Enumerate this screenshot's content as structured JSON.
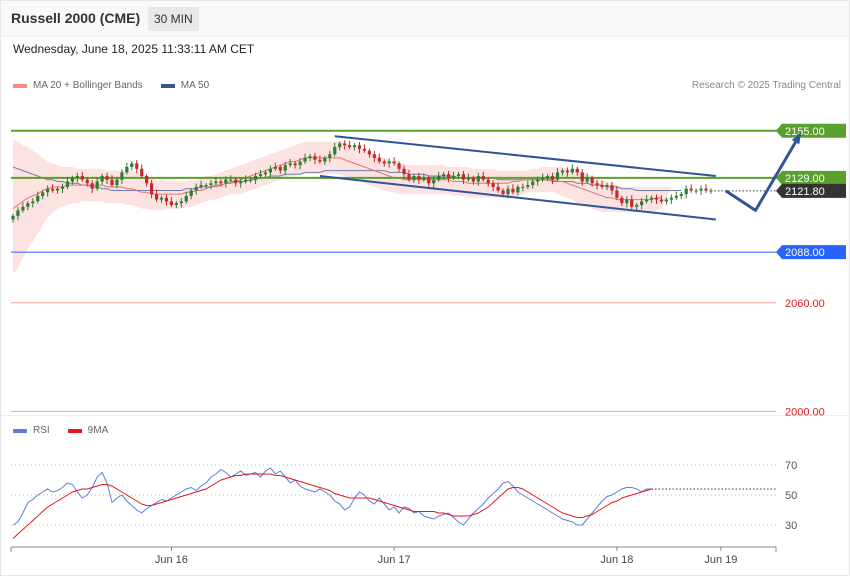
{
  "header": {
    "title": "Russell 2000 (CME)",
    "timeframe": "30 MIN",
    "datetime": "Wednesday, June 18, 2025 11:33:11 AM CET",
    "credit": "Research © 2025 Trading Central"
  },
  "legend": [
    {
      "label": "MA 20 + Bollinger Bands",
      "color": "#f28b82"
    },
    {
      "label": "MA 50",
      "color": "#2f5597"
    }
  ],
  "rsi_legend": [
    {
      "label": "RSI",
      "color": "#5b7fd6"
    },
    {
      "label": "9MA",
      "color": "#e31a1c"
    }
  ],
  "chart_data": [
    {
      "type": "candlestick",
      "ylim": [
        1998,
        2172
      ],
      "x_labels": [
        "Jun 16",
        "Jun 17",
        "Jun 18",
        "Jun 19"
      ],
      "x_label_bar_index": [
        32,
        77,
        122,
        143
      ],
      "last_price": 2121.8,
      "levels": [
        {
          "label": "2155.00",
          "value": 2155.0,
          "kind": "resistance",
          "color": "#5aa02c"
        },
        {
          "label": "2129.00",
          "value": 2129.0,
          "kind": "resistance",
          "color": "#5aa02c"
        },
        {
          "label": "2121.80",
          "value": 2121.8,
          "kind": "last",
          "color": "#333333"
        },
        {
          "label": "2088.00",
          "value": 2088.0,
          "kind": "pivot",
          "color": "#2962ff"
        },
        {
          "label": "2060.00",
          "value": 2060.0,
          "kind": "support",
          "color": "#e31a1c"
        },
        {
          "label": "2000.00",
          "value": 2000.0,
          "kind": "support",
          "color": "#e31a1c"
        }
      ],
      "channel": {
        "upper": [
          [
            65,
            2152
          ],
          [
            142,
            2130
          ]
        ],
        "lower": [
          [
            62,
            2130
          ],
          [
            142,
            2106
          ]
        ],
        "color": "#2f5597"
      },
      "forecast_path": [
        [
          144,
          2121.8
        ],
        [
          150,
          2111
        ],
        [
          159,
          2153
        ]
      ],
      "closes": [
        2108,
        2111,
        2113,
        2115,
        2116,
        2119,
        2121,
        2123,
        2122,
        2123,
        2124,
        2127,
        2129,
        2130,
        2128,
        2126,
        2123,
        2127,
        2130,
        2128,
        2125,
        2128,
        2132,
        2135,
        2137,
        2134,
        2130,
        2126,
        2120,
        2117,
        2118,
        2116,
        2114,
        2115,
        2116,
        2119,
        2122,
        2124,
        2125,
        2125,
        2126,
        2127,
        2126,
        2128,
        2128,
        2126,
        2127,
        2128,
        2128,
        2130,
        2131,
        2132,
        2134,
        2135,
        2133,
        2136,
        2137,
        2136,
        2138,
        2140,
        2141,
        2139,
        2138,
        2140,
        2142,
        2146,
        2148,
        2147,
        2146,
        2147,
        2145,
        2144,
        2142,
        2140,
        2138,
        2137,
        2138,
        2137,
        2134,
        2131,
        2128,
        2130,
        2128,
        2129,
        2126,
        2128,
        2130,
        2131,
        2129,
        2130,
        2131,
        2128,
        2129,
        2127,
        2130,
        2128,
        2126,
        2124,
        2122,
        2120,
        2123,
        2121,
        2124,
        2124,
        2125,
        2127,
        2128,
        2129,
        2130,
        2128,
        2132,
        2133,
        2132,
        2134,
        2132,
        2127,
        2129,
        2126,
        2125,
        2124,
        2125,
        2122,
        2118,
        2115,
        2117,
        2113,
        2114,
        2116,
        2117,
        2118,
        2117,
        2116,
        2117,
        2118,
        2119,
        2120,
        2123,
        2122,
        2122,
        2123,
        2122,
        2122
      ],
      "ma20": [
        2112,
        2114,
        2116,
        2118,
        2119,
        2120,
        2122,
        2123,
        2124,
        2124,
        2124,
        2125,
        2125,
        2125,
        2125,
        2125,
        2125,
        2125,
        2125,
        2124,
        2124,
        2124,
        2124,
        2123,
        2123,
        2122,
        2121,
        2121,
        2120,
        2120,
        2120,
        2120,
        2120,
        2120,
        2120,
        2121,
        2121,
        2122,
        2122,
        2123,
        2124,
        2124,
        2125,
        2126,
        2127,
        2127,
        2128,
        2129,
        2130,
        2131,
        2132,
        2133,
        2134,
        2135,
        2136,
        2137,
        2138,
        2138,
        2139,
        2140,
        2140,
        2140,
        2140,
        2140,
        2140,
        2140,
        2140,
        2139,
        2138,
        2137,
        2136,
        2135,
        2134,
        2133,
        2132,
        2131,
        2130,
        2129,
        2129,
        2128,
        2128,
        2128,
        2128,
        2128,
        2128,
        2128,
        2128,
        2128,
        2128,
        2127,
        2127,
        2127,
        2126,
        2126,
        2126,
        2126,
        2126,
        2126,
        2126,
        2126,
        2126,
        2127,
        2127,
        2128,
        2128,
        2128,
        2128,
        2128,
        2128,
        2128,
        2127,
        2127,
        2126,
        2125,
        2124,
        2123,
        2122,
        2121,
        2120,
        2119,
        2118,
        2118,
        2117,
        2117,
        2117,
        2117,
        2117,
        2117,
        2117,
        2117,
        2118,
        2118
      ],
      "ma50": [
        2135,
        2134,
        2133,
        2132,
        2131,
        2130,
        2129,
        2128,
        2128,
        2127,
        2127,
        2126,
        2126,
        2126,
        2125,
        2125,
        2124,
        2124,
        2123,
        2123,
        2122,
        2122,
        2122,
        2122,
        2122,
        2122,
        2122,
        2122,
        2122,
        2122,
        2122,
        2122,
        2122,
        2122,
        2122,
        2123,
        2123,
        2123,
        2124,
        2124,
        2124,
        2125,
        2125,
        2126,
        2126,
        2127,
        2127,
        2127,
        2128,
        2128,
        2129,
        2129,
        2130,
        2130,
        2130,
        2131,
        2131,
        2131,
        2131,
        2132,
        2132,
        2132,
        2132,
        2133,
        2133,
        2133,
        2133,
        2133,
        2133,
        2133,
        2133,
        2133,
        2133,
        2133,
        2133,
        2133,
        2132,
        2132,
        2132,
        2132,
        2131,
        2131,
        2131,
        2131,
        2130,
        2130,
        2130,
        2130,
        2130,
        2130,
        2129,
        2129,
        2129,
        2129,
        2129,
        2129,
        2129,
        2129,
        2128,
        2128,
        2128,
        2128,
        2128,
        2128,
        2128,
        2128,
        2128,
        2128,
        2128,
        2127,
        2127,
        2127,
        2127,
        2127,
        2126,
        2126,
        2126,
        2125,
        2125,
        2125,
        2124,
        2124,
        2124,
        2123,
        2123,
        2123,
        2122,
        2122,
        2122,
        2122,
        2122,
        2122,
        2122,
        2122,
        2122,
        2122
      ],
      "bb_upper": [
        2150,
        2149,
        2147,
        2146,
        2144,
        2142,
        2140,
        2138,
        2137,
        2136,
        2135,
        2135,
        2135,
        2134,
        2134,
        2134,
        2134,
        2134,
        2134,
        2133,
        2133,
        2133,
        2133,
        2133,
        2133,
        2132,
        2131,
        2130,
        2129,
        2128,
        2128,
        2127,
        2127,
        2127,
        2127,
        2127,
        2128,
        2128,
        2129,
        2130,
        2130,
        2131,
        2132,
        2133,
        2134,
        2135,
        2136,
        2137,
        2138,
        2139,
        2140,
        2141,
        2142,
        2143,
        2144,
        2145,
        2146,
        2147,
        2148,
        2149,
        2149,
        2149,
        2149,
        2149,
        2149,
        2149,
        2149,
        2148,
        2147,
        2146,
        2145,
        2144,
        2143,
        2142,
        2141,
        2140,
        2139,
        2138,
        2137,
        2137,
        2136,
        2136,
        2136,
        2136,
        2136,
        2136,
        2136,
        2136,
        2135,
        2135,
        2135,
        2135,
        2135,
        2134,
        2134,
        2134,
        2134,
        2134,
        2133,
        2133,
        2133,
        2133,
        2133,
        2133,
        2133,
        2134,
        2134,
        2135,
        2135,
        2135,
        2135,
        2135,
        2134,
        2134,
        2133,
        2132,
        2131,
        2130,
        2129,
        2128,
        2127,
        2126,
        2125,
        2124,
        2124,
        2124,
        2124,
        2124,
        2124,
        2124,
        2124,
        2124,
        2124,
        2124
      ],
      "bb_lower": [
        2076,
        2079,
        2085,
        2090,
        2094,
        2098,
        2103,
        2107,
        2110,
        2112,
        2113,
        2114,
        2115,
        2115,
        2116,
        2116,
        2116,
        2116,
        2116,
        2115,
        2115,
        2115,
        2115,
        2114,
        2114,
        2113,
        2112,
        2112,
        2111,
        2111,
        2111,
        2112,
        2112,
        2112,
        2112,
        2113,
        2113,
        2114,
        2115,
        2116,
        2117,
        2117,
        2118,
        2119,
        2120,
        2120,
        2120,
        2121,
        2122,
        2123,
        2124,
        2125,
        2126,
        2127,
        2128,
        2129,
        2130,
        2130,
        2131,
        2131,
        2131,
        2131,
        2131,
        2131,
        2131,
        2131,
        2131,
        2130,
        2129,
        2128,
        2127,
        2126,
        2125,
        2124,
        2123,
        2122,
        2121,
        2121,
        2120,
        2120,
        2120,
        2120,
        2120,
        2120,
        2120,
        2120,
        2120,
        2120,
        2120,
        2119,
        2119,
        2119,
        2118,
        2118,
        2118,
        2118,
        2118,
        2118,
        2118,
        2118,
        2118,
        2119,
        2119,
        2120,
        2121,
        2121,
        2121,
        2121,
        2121,
        2121,
        2120,
        2119,
        2118,
        2117,
        2115,
        2114,
        2113,
        2112,
        2111,
        2110,
        2110,
        2110,
        2110,
        2110,
        2110,
        2110,
        2110,
        2110,
        2110,
        2110,
        2111,
        2112
      ]
    },
    {
      "type": "line",
      "name": "RSI",
      "ylim": [
        20,
        80
      ],
      "y_ticks": [
        70,
        50,
        30
      ],
      "series": [
        {
          "name": "RSI",
          "color": "#5b7fd6",
          "values": [
            30,
            32,
            38,
            45,
            47,
            50,
            52,
            54,
            52,
            53,
            55,
            58,
            57,
            52,
            48,
            50,
            55,
            62,
            65,
            58,
            45,
            48,
            50,
            46,
            43,
            40,
            38,
            41,
            43,
            45,
            47,
            46,
            48,
            50,
            52,
            54,
            55,
            53,
            56,
            58,
            62,
            64,
            67,
            65,
            62,
            64,
            66,
            63,
            64,
            65,
            62,
            66,
            68,
            64,
            66,
            62,
            58,
            60,
            56,
            54,
            53,
            52,
            54,
            52,
            50,
            46,
            44,
            40,
            42,
            48,
            52,
            50,
            46,
            44,
            48,
            44,
            40,
            42,
            38,
            42,
            41,
            38,
            39,
            36,
            35,
            34,
            36,
            37,
            38,
            35,
            32,
            30,
            34,
            38,
            41,
            44,
            48,
            51,
            54,
            58,
            59,
            56,
            52,
            50,
            48,
            46,
            44,
            42,
            40,
            38,
            36,
            34,
            33,
            32,
            30,
            30,
            34,
            38,
            42,
            46,
            49,
            50,
            52,
            54,
            55,
            55,
            54,
            52,
            54,
            54
          ]
        },
        {
          "name": "9MA",
          "color": "#e31a1c",
          "values": [
            21,
            24,
            27,
            30,
            33,
            36,
            39,
            42,
            44,
            46,
            48,
            50,
            52,
            53,
            54,
            54,
            55,
            56,
            57,
            57,
            56,
            54,
            52,
            50,
            48,
            46,
            44,
            43,
            43,
            44,
            45,
            46,
            47,
            48,
            49,
            50,
            51,
            52,
            53,
            54,
            56,
            58,
            60,
            61,
            62,
            63,
            63,
            64,
            64,
            64,
            64,
            64,
            64,
            63,
            63,
            62,
            61,
            60,
            59,
            58,
            57,
            56,
            55,
            54,
            53,
            51,
            50,
            49,
            48,
            48,
            48,
            48,
            48,
            47,
            46,
            45,
            44,
            43,
            42,
            41,
            40,
            39,
            39,
            39,
            39,
            39,
            38,
            38,
            37,
            36,
            36,
            36,
            36,
            37,
            38,
            40,
            42,
            45,
            48,
            51,
            54,
            55,
            55,
            54,
            52,
            50,
            48,
            46,
            44,
            42,
            40,
            38,
            37,
            36,
            35,
            35,
            36,
            37,
            39,
            41,
            43,
            45,
            46,
            48,
            49,
            50,
            51,
            52,
            53,
            54
          ]
        }
      ]
    }
  ]
}
